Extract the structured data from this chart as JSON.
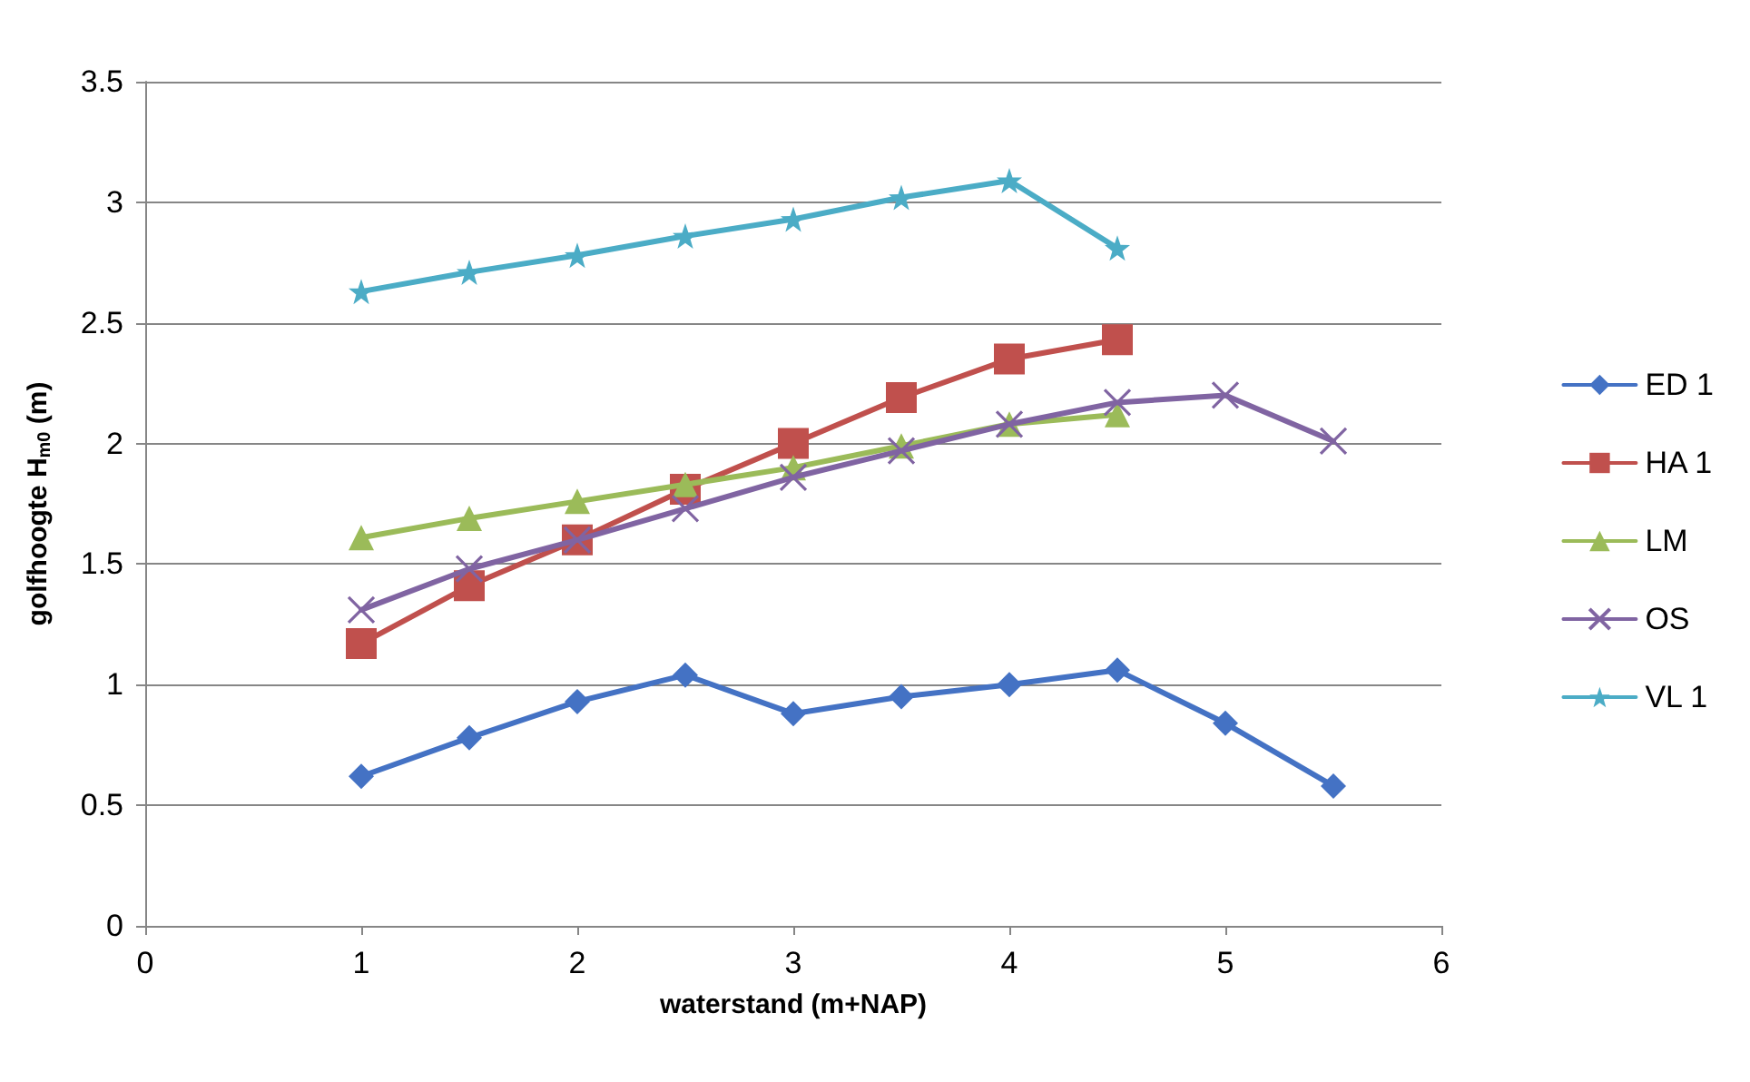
{
  "chart_data": {
    "type": "line",
    "xlabel": "waterstand (m+NAP)",
    "ylabel": "golfhoogte H$_{m0}$ (m)",
    "xlim": [
      0,
      6
    ],
    "xticks": [
      0,
      1,
      2,
      3,
      4,
      5,
      6
    ],
    "ylim": [
      0,
      3.5
    ],
    "yticks": [
      0,
      0.5,
      1,
      1.5,
      2,
      2.5,
      3,
      3.5
    ],
    "grid": "y",
    "legend": "right",
    "line_style": "solid",
    "series": [
      {
        "name": "ED 1",
        "color": "#4472c4",
        "marker": "diamond",
        "x": [
          1,
          1.5,
          2,
          2.5,
          3,
          3.5,
          4,
          4.5,
          5,
          5.5
        ],
        "values": [
          0.62,
          0.78,
          0.93,
          1.04,
          0.88,
          0.95,
          1.0,
          1.06,
          0.84,
          0.58
        ]
      },
      {
        "name": "HA 1",
        "color": "#c0504d",
        "marker": "square",
        "x": [
          1,
          1.5,
          2,
          2.5,
          3,
          3.5,
          4,
          4.5
        ],
        "values": [
          1.17,
          1.41,
          1.6,
          1.81,
          2.0,
          2.19,
          2.35,
          2.43
        ]
      },
      {
        "name": "LM",
        "color": "#9bbb59",
        "marker": "triangle",
        "x": [
          1,
          1.5,
          2,
          2.5,
          3,
          3.5,
          4,
          4.5
        ],
        "values": [
          1.61,
          1.69,
          1.76,
          1.83,
          1.9,
          1.99,
          2.08,
          2.12
        ]
      },
      {
        "name": "OS",
        "color": "#8064a2",
        "marker": "cross",
        "x": [
          1,
          1.5,
          2,
          2.5,
          3,
          3.5,
          4,
          4.5,
          5,
          5.5
        ],
        "values": [
          1.31,
          1.48,
          1.6,
          1.73,
          1.86,
          1.97,
          2.08,
          2.17,
          2.2,
          2.01
        ]
      },
      {
        "name": "VL 1",
        "color": "#4bacc6",
        "marker": "star",
        "x": [
          1,
          1.5,
          2,
          2.5,
          3,
          3.5,
          4,
          4.5
        ],
        "values": [
          2.63,
          2.71,
          2.78,
          2.86,
          2.93,
          3.02,
          3.09,
          2.81
        ]
      }
    ]
  }
}
